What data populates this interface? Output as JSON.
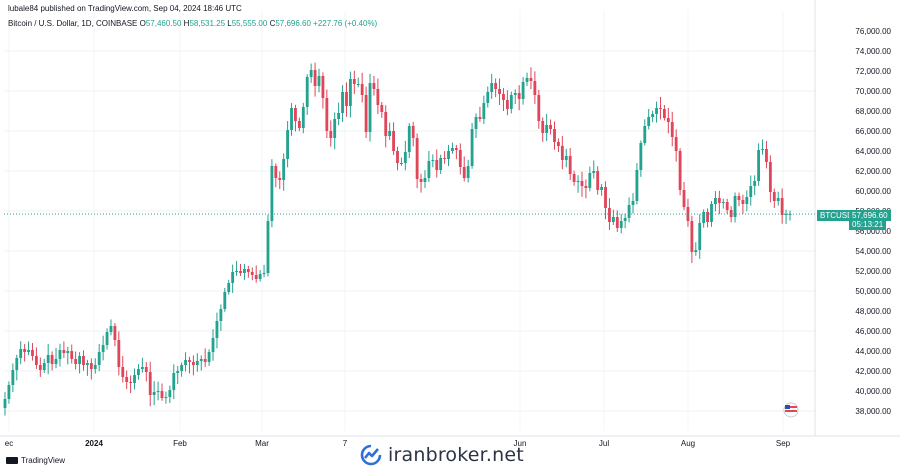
{
  "header": {
    "publisher": "lubale84 published on TradingView.com, Sep 04, 2024 18:46 UTC",
    "symbol": "Bitcoin / U.S. Dollar, 1D, COINBASE",
    "o_label": "O",
    "o_value": "57,460.50",
    "h_label": "H",
    "h_value": "58,531.25",
    "l_label": "L",
    "l_value": "55,555.00",
    "c_label": "C",
    "c_value": "57,696.60",
    "change": "+227.76 (+0.40%)"
  },
  "price_tag": {
    "symbol": "BTCUSD",
    "price": "57,696.60",
    "countdown": "05:13:21"
  },
  "footer": {
    "logo_text": "TradingView",
    "watermark": "iranbroker.net"
  },
  "colors": {
    "up": "#22a28f",
    "down": "#e0455a",
    "accent": "#22a28f",
    "text": "#131722"
  },
  "chart_data": {
    "type": "candlestick",
    "x_tick_labels": [
      "ec",
      "2024",
      "Feb",
      "Mar",
      "7",
      "Jun",
      "Jul",
      "Aug",
      "Sep"
    ],
    "y_tick_labels": [
      "38,000.00",
      "40,000.00",
      "42,000.00",
      "44,000.00",
      "46,000.00",
      "48,000.00",
      "50,000.00",
      "52,000.00",
      "54,000.00",
      "56,000.00",
      "58,000.00",
      "60,000.00",
      "62,000.00",
      "64,000.00",
      "66,000.00",
      "68,000.00",
      "70,000.00",
      "72,000.00",
      "74,000.00",
      "76,000.00"
    ],
    "ylim": [
      37000,
      77000
    ],
    "last_price": 57696.6,
    "grid": true,
    "period": "1D",
    "closes": [
      39200,
      40600,
      42100,
      43300,
      44200,
      43900,
      44100,
      43500,
      42600,
      42100,
      42800,
      43600,
      42700,
      43200,
      44100,
      43800,
      44000,
      43200,
      42700,
      43500,
      42600,
      42800,
      42200,
      42600,
      43900,
      44600,
      45900,
      46500,
      45100,
      42400,
      41400,
      40900,
      40800,
      41600,
      42200,
      42400,
      41900,
      39600,
      39900,
      40000,
      39300,
      39400,
      40100,
      41800,
      42000,
      42600,
      43100,
      42900,
      42600,
      43000,
      43200,
      42900,
      43900,
      45300,
      47000,
      48200,
      49900,
      50800,
      51900,
      52000,
      51800,
      52200,
      51900,
      51600,
      51200,
      51700,
      51800,
      57000,
      62500,
      61300,
      61100,
      63200,
      66100,
      68300,
      67000,
      66300,
      68400,
      71400,
      72100,
      70500,
      71500,
      69300,
      66000,
      65300,
      67200,
      67800,
      69900,
      68500,
      71200,
      70700,
      70700,
      69600,
      65900,
      70800,
      70200,
      68600,
      67900,
      65500,
      66000,
      64000,
      62800,
      62800,
      63900,
      66500,
      65300,
      61200,
      60900,
      61300,
      63000,
      63100,
      62100,
      63300,
      63200,
      64000,
      64300,
      64100,
      62400,
      61300,
      62500,
      66200,
      67400,
      67200,
      68800,
      69900,
      70800,
      70200,
      69700,
      69100,
      68200,
      69600,
      69800,
      69200,
      70900,
      71300,
      71000,
      69600,
      67000,
      65800,
      66600,
      66200,
      64900,
      64500,
      63100,
      63500,
      61700,
      60900,
      61000,
      60500,
      60300,
      61800,
      62000,
      60100,
      60400,
      58300,
      56900,
      57400,
      56300,
      57000,
      57300,
      58600,
      59000,
      62100,
      64800,
      66500,
      67400,
      67700,
      68300,
      68200,
      67300,
      66900,
      65400,
      64000,
      60100,
      58400,
      57000,
      53900,
      54100,
      56800,
      57900,
      56900,
      58700,
      59300,
      58800,
      58900,
      58100,
      57400,
      59500,
      59100,
      58700,
      59400,
      60500,
      61000,
      64100,
      64200,
      62900,
      59900,
      59000,
      59300,
      57600,
      57700,
      57700
    ]
  }
}
